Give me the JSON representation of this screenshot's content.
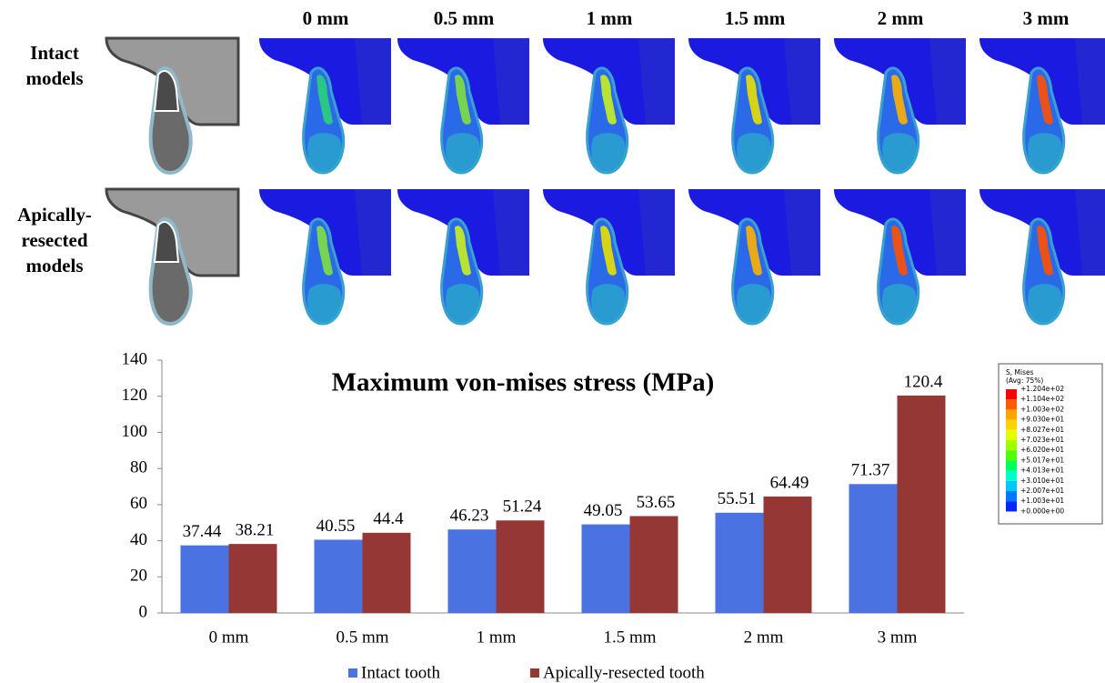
{
  "figure": {
    "column_headers": [
      "0 mm",
      "0.5 mm",
      "1 mm",
      "1.5 mm",
      "2 mm",
      "3 mm"
    ],
    "row_labels": [
      [
        "Intact",
        "models"
      ],
      [
        "Apically-",
        "resected",
        "models"
      ]
    ],
    "contour_legend": {
      "title": "S, Mises",
      "subtitle": "(Avg: 75%)",
      "colors": [
        "#ff0000",
        "#ff5a00",
        "#ffa500",
        "#ffd200",
        "#e6ff00",
        "#a0ff00",
        "#50ff00",
        "#00ff5a",
        "#00ffc8",
        "#00c8ff",
        "#0078ff",
        "#0028ff"
      ],
      "labels": [
        "+1.204e+02",
        "+1.104e+02",
        "+1.003e+02",
        "+9.030e+01",
        "+8.027e+01",
        "+7.023e+01",
        "+6.020e+01",
        "+5.017e+01",
        "+4.013e+01",
        "+3.010e+01",
        "+2.007e+01",
        "+1.003e+01",
        "+0.000e+00"
      ]
    }
  },
  "chart_data": {
    "type": "bar",
    "title": "Maximum von-mises stress (MPa)",
    "categories": [
      "0 mm",
      "0.5 mm",
      "1 mm",
      "1.5 mm",
      "2 mm",
      "3 mm"
    ],
    "series": [
      {
        "name": "Intact tooth",
        "color": "#4a72e0",
        "values": [
          37.44,
          40.55,
          46.23,
          49.05,
          55.51,
          71.37
        ]
      },
      {
        "name": "Apically-resected tooth",
        "color": "#953735",
        "values": [
          38.21,
          44.4,
          51.24,
          53.65,
          64.49,
          120.4
        ]
      }
    ],
    "ylim": [
      0,
      140
    ],
    "yticks": [
      0,
      20,
      40,
      60,
      80,
      100,
      120,
      140
    ],
    "grid": false,
    "legend": "bottom"
  }
}
